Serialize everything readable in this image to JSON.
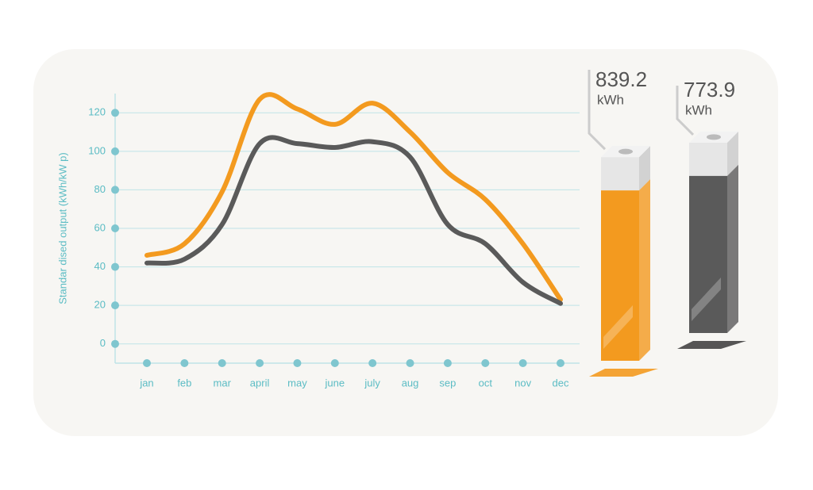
{
  "chart_data": {
    "type": "line",
    "y_label": "Standar dised output (kWh/kW p)",
    "categories": [
      "jan",
      "feb",
      "mar",
      "april",
      "may",
      "june",
      "july",
      "aug",
      "sep",
      "oct",
      "nov",
      "dec"
    ],
    "series": [
      {
        "color": "#f39a1f",
        "values": [
          46,
          52,
          79,
          127,
          122,
          114,
          125,
          110,
          89,
          75,
          52,
          23
        ]
      },
      {
        "color": "#5a5a5a",
        "values": [
          42,
          44,
          62,
          104,
          104,
          102,
          105,
          97,
          62,
          52,
          32,
          21
        ]
      }
    ],
    "ylim": [
      -10,
      130
    ],
    "yticks": [
      0,
      20,
      40,
      60,
      80,
      100,
      120
    ],
    "grid": true,
    "totals": [
      {
        "value": 839.2,
        "unit": "kWh",
        "color": "#f39a1f"
      },
      {
        "value": 773.9,
        "unit": "kWh",
        "color": "#5a5a5a"
      }
    ]
  }
}
